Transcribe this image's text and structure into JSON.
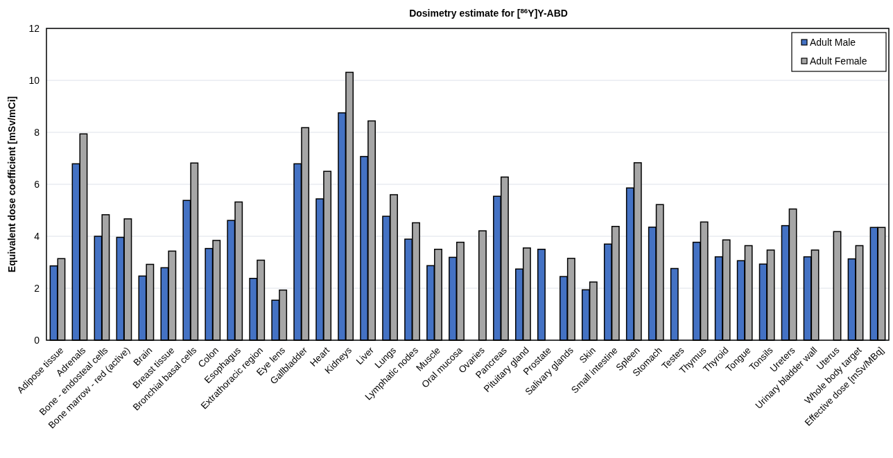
{
  "chart_data": {
    "type": "bar",
    "title": "Dosimetry estimate for [$^{86}$Y]Y-ABD",
    "ylabel": "Equivalent dose coefficient [mSv/mCi]",
    "categories": [
      "Adipose tissue",
      "Adrenals",
      "Bone - endosteal cells",
      "Bone marrow - red (active)",
      "Brain",
      "Breast tissue",
      "Bronchial basal cells",
      "Colon",
      "Esophagus",
      "Extrathoracic region",
      "Eye lens",
      "Gallbladder",
      "Heart",
      "Kidneys",
      "Liver",
      "Lungs",
      "Lymphatic nodes",
      "Muscle",
      "Oral mucosa",
      "Ovaries",
      "Pancreas",
      "Pituitary gland",
      "Prostate",
      "Salivary glands",
      "Skin",
      "Small intestine",
      "Spleen",
      "Stomach",
      "Testes",
      "Thymus",
      "Thyroid",
      "Tongue",
      "Tonsils",
      "Ureters",
      "Urinary bladder wall",
      "Uterus",
      "Whole body target",
      "Effective dose [mSv/MBq]"
    ],
    "series": [
      {
        "name": "Adult Male",
        "color": "#4472c4",
        "values": [
          2.86,
          6.79,
          4.0,
          3.96,
          2.47,
          2.79,
          5.38,
          3.53,
          4.61,
          2.38,
          1.54,
          6.79,
          5.44,
          8.75,
          7.07,
          4.77,
          3.89,
          2.87,
          3.19,
          null,
          5.54,
          2.74,
          3.5,
          2.45,
          1.94,
          3.7,
          5.86,
          4.35,
          2.76,
          3.77,
          3.21,
          3.06,
          2.93,
          4.41,
          3.21,
          null,
          3.13,
          4.34
        ]
      },
      {
        "name": "Adult Female",
        "color": "#a6a6a6",
        "values": [
          3.14,
          7.94,
          4.83,
          4.67,
          2.92,
          3.43,
          6.82,
          3.84,
          5.32,
          3.08,
          1.93,
          8.18,
          6.5,
          10.31,
          8.44,
          5.6,
          4.52,
          3.5,
          3.77,
          4.21,
          6.28,
          3.55,
          null,
          3.15,
          2.24,
          4.38,
          6.83,
          5.22,
          null,
          4.55,
          3.86,
          3.64,
          3.47,
          5.05,
          3.47,
          4.18,
          3.64,
          4.34
        ]
      }
    ],
    "ylim": [
      0,
      12
    ],
    "yticks": [
      0,
      2,
      4,
      6,
      8,
      10,
      12
    ],
    "grid": "y",
    "legend": "top right"
  }
}
